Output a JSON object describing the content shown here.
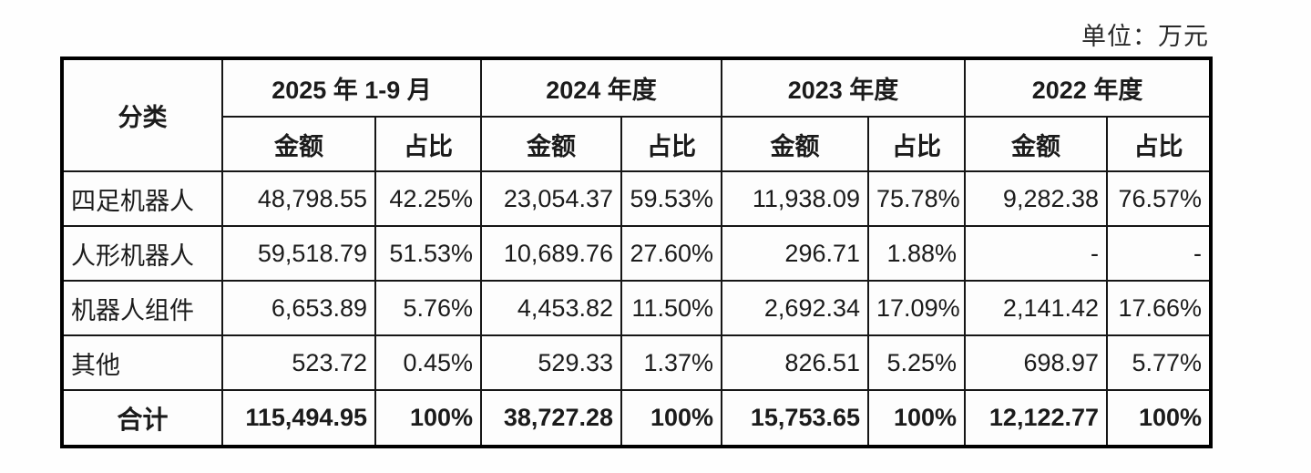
{
  "page": {
    "unit_label": "单位：万元"
  },
  "table": {
    "category_header": "分类",
    "col_groups": [
      {
        "label": "2025 年 1-9 月"
      },
      {
        "label": "2024 年度"
      },
      {
        "label": "2023 年度"
      },
      {
        "label": "2022 年度"
      }
    ],
    "sub_headers": {
      "amount": "金额",
      "ratio": "占比"
    },
    "rows": [
      {
        "label": "四足机器人",
        "values": [
          "48,798.55",
          "42.25%",
          "23,054.37",
          "59.53%",
          "11,938.09",
          "75.78%",
          "9,282.38",
          "76.57%"
        ]
      },
      {
        "label": "人形机器人",
        "values": [
          "59,518.79",
          "51.53%",
          "10,689.76",
          "27.60%",
          "296.71",
          "1.88%",
          "-",
          "-"
        ]
      },
      {
        "label": "机器人组件",
        "values": [
          "6,653.89",
          "5.76%",
          "4,453.82",
          "11.50%",
          "2,692.34",
          "17.09%",
          "2,141.42",
          "17.66%"
        ]
      },
      {
        "label": "其他",
        "values": [
          "523.72",
          "0.45%",
          "529.33",
          "1.37%",
          "826.51",
          "5.25%",
          "698.97",
          "5.77%"
        ]
      }
    ],
    "total_row": {
      "label": "合计",
      "values": [
        "115,494.95",
        "100%",
        "38,727.28",
        "100%",
        "15,753.65",
        "100%",
        "12,122.77",
        "100%"
      ]
    }
  },
  "colors": {
    "border": "#000000",
    "text": "#1b1b1b",
    "background": "#ffffff"
  }
}
